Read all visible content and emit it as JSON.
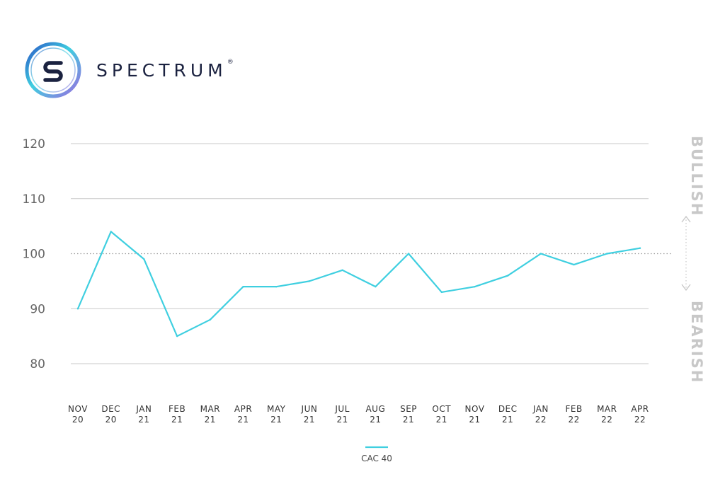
{
  "brand": {
    "name": "SPECTRUM",
    "reg_mark": "®"
  },
  "chart_data": {
    "type": "line",
    "x": [
      "NOV 20",
      "DEC 20",
      "JAN 21",
      "FEB 21",
      "MAR 21",
      "APR 21",
      "MAY 21",
      "JUN 21",
      "JUL 21",
      "AUG 21",
      "SEP 21",
      "OCT 21",
      "NOV 21",
      "DEC 21",
      "JAN 22",
      "FEB 22",
      "MAR 22",
      "APR 22"
    ],
    "x_tick_labels": [
      [
        "NOV",
        "20"
      ],
      [
        "DEC",
        "20"
      ],
      [
        "JAN",
        "21"
      ],
      [
        "FEB",
        "21"
      ],
      [
        "MAR",
        "21"
      ],
      [
        "APR",
        "21"
      ],
      [
        "MAY",
        "21"
      ],
      [
        "JUN",
        "21"
      ],
      [
        "JUL",
        "21"
      ],
      [
        "AUG",
        "21"
      ],
      [
        "SEP",
        "21"
      ],
      [
        "OCT",
        "21"
      ],
      [
        "NOV",
        "21"
      ],
      [
        "DEC",
        "21"
      ],
      [
        "JAN",
        "22"
      ],
      [
        "FEB",
        "22"
      ],
      [
        "MAR",
        "22"
      ],
      [
        "APR",
        "22"
      ]
    ],
    "series": [
      {
        "name": "CAC 40",
        "color": "#3fcfe0",
        "values": [
          90,
          104,
          99,
          85,
          88,
          94,
          94,
          95,
          97,
          94,
          100,
          93,
          94,
          96,
          100,
          98,
          100,
          101
        ]
      }
    ],
    "ylim": [
      80,
      120
    ],
    "y_ticks": [
      80,
      90,
      100,
      110,
      120
    ],
    "reference_line": 100,
    "grid": true,
    "legend_position": "bottom",
    "side_labels": {
      "top": "BULLISH",
      "bottom": "BEARISH"
    }
  }
}
